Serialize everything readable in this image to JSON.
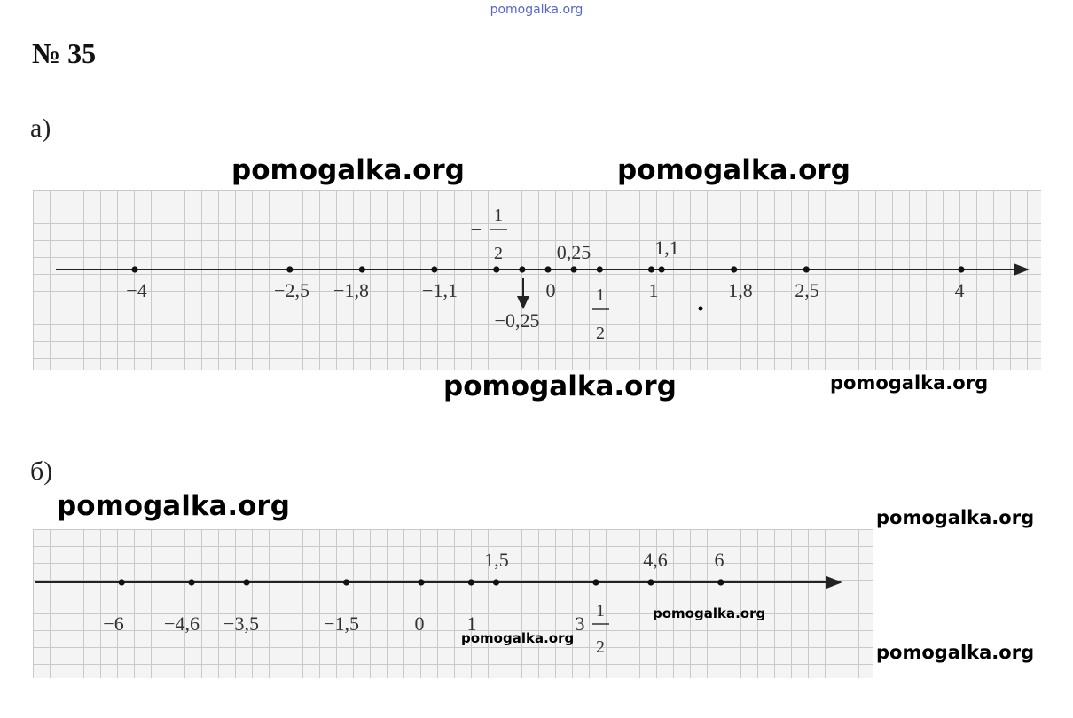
{
  "watermark_top": "pomogalka.org",
  "task_number": "№ 35",
  "watermark": "pomogalka.org",
  "part_a": {
    "label": "а)",
    "points": [
      -4,
      -2.5,
      -1.8,
      -1.1,
      -0.5,
      -0.25,
      0,
      0.25,
      0.5,
      1,
      1.1,
      1.8,
      2.5,
      4
    ],
    "labels": {
      "m4": "−4",
      "m25": "−2,5",
      "m18": "−1,8",
      "m11": "−1,1",
      "mhalf_sign": "−",
      "mhalf_num": "1",
      "mhalf_den": "2",
      "m025": "−0,25",
      "zero": "0",
      "p025": "0,25",
      "half_num": "1",
      "half_den": "2",
      "one": "1",
      "p11": "1,1",
      "p18": "1,8",
      "p25": "2,5",
      "p4": "4"
    }
  },
  "part_b": {
    "label": "б)",
    "points": [
      -6,
      -4.6,
      -3.5,
      -1.5,
      0,
      1,
      1.5,
      3.5,
      4.6,
      6
    ],
    "labels": {
      "m6": "−6",
      "m46": "−4,6",
      "m35": "−3,5",
      "m15": "−1,5",
      "zero": "0",
      "one": "1",
      "p15": "1,5",
      "p35_whole": "3",
      "p35_num": "1",
      "p35_den": "2",
      "p46": "4,6",
      "p6": "6"
    }
  }
}
